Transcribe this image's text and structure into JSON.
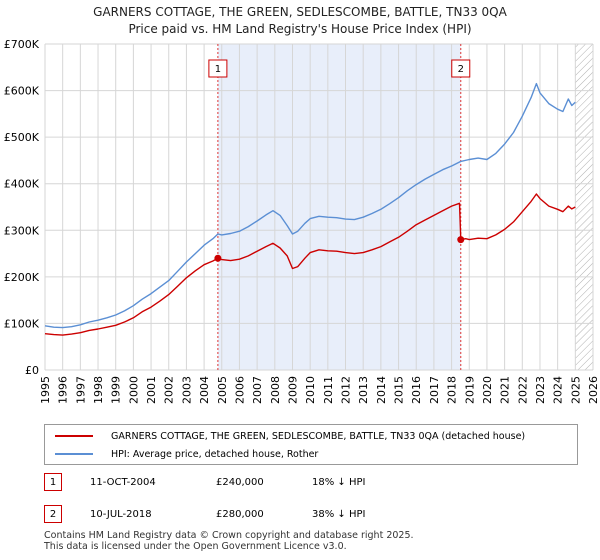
{
  "chart_data": {
    "type": "line",
    "title": "GARNERS COTTAGE, THE GREEN, SEDLESCOMBE, BATTLE, TN33 0QA",
    "subtitle": "Price paid vs. HM Land Registry's House Price Index (HPI)",
    "xlim": [
      1995,
      2026
    ],
    "ylim": [
      0,
      700000
    ],
    "x_ticks": [
      "1995",
      "1996",
      "1997",
      "1998",
      "1999",
      "2000",
      "2001",
      "2002",
      "2003",
      "2004",
      "2005",
      "2006",
      "2007",
      "2008",
      "2009",
      "2010",
      "2011",
      "2012",
      "2013",
      "2014",
      "2015",
      "2016",
      "2017",
      "2018",
      "2019",
      "2020",
      "2021",
      "2022",
      "2023",
      "2024",
      "2025",
      "2026"
    ],
    "y_ticks": [
      {
        "value": 0,
        "label": "£0"
      },
      {
        "value": 100000,
        "label": "£100K"
      },
      {
        "value": 200000,
        "label": "£200K"
      },
      {
        "value": 300000,
        "label": "£300K"
      },
      {
        "value": 400000,
        "label": "£400K"
      },
      {
        "value": 500000,
        "label": "£500K"
      },
      {
        "value": 600000,
        "label": "£600K"
      },
      {
        "value": 700000,
        "label": "£700K"
      }
    ],
    "shaded_region": [
      2004.78,
      2018.52
    ],
    "future_hatch_from": 2025.0,
    "series": [
      {
        "name": "GARNERS COTTAGE, THE GREEN, SEDLESCOMBE, BATTLE, TN33 0QA (detached house)",
        "color": "#cc0000",
        "points": [
          [
            1995.0,
            78000
          ],
          [
            1995.5,
            76000
          ],
          [
            1996.0,
            75000
          ],
          [
            1996.5,
            77000
          ],
          [
            1997.0,
            80000
          ],
          [
            1997.5,
            85000
          ],
          [
            1998.0,
            88000
          ],
          [
            1998.5,
            92000
          ],
          [
            1999.0,
            96000
          ],
          [
            1999.5,
            103000
          ],
          [
            2000.0,
            112000
          ],
          [
            2000.5,
            125000
          ],
          [
            2001.0,
            135000
          ],
          [
            2001.5,
            148000
          ],
          [
            2002.0,
            162000
          ],
          [
            2002.5,
            180000
          ],
          [
            2003.0,
            198000
          ],
          [
            2003.5,
            213000
          ],
          [
            2004.0,
            226000
          ],
          [
            2004.5,
            234000
          ],
          [
            2004.78,
            240000
          ],
          [
            2005.0,
            237000
          ],
          [
            2005.5,
            235000
          ],
          [
            2006.0,
            238000
          ],
          [
            2006.5,
            245000
          ],
          [
            2007.0,
            255000
          ],
          [
            2007.5,
            265000
          ],
          [
            2007.9,
            272000
          ],
          [
            2008.3,
            262000
          ],
          [
            2008.7,
            245000
          ],
          [
            2009.0,
            218000
          ],
          [
            2009.3,
            222000
          ],
          [
            2009.7,
            240000
          ],
          [
            2010.0,
            252000
          ],
          [
            2010.5,
            258000
          ],
          [
            2011.0,
            256000
          ],
          [
            2011.5,
            255000
          ],
          [
            2012.0,
            252000
          ],
          [
            2012.5,
            250000
          ],
          [
            2013.0,
            252000
          ],
          [
            2013.5,
            258000
          ],
          [
            2014.0,
            265000
          ],
          [
            2014.5,
            275000
          ],
          [
            2015.0,
            285000
          ],
          [
            2015.5,
            298000
          ],
          [
            2016.0,
            312000
          ],
          [
            2016.5,
            322000
          ],
          [
            2017.0,
            332000
          ],
          [
            2017.5,
            342000
          ],
          [
            2018.0,
            352000
          ],
          [
            2018.45,
            358000
          ],
          [
            2018.52,
            280000
          ],
          [
            2018.8,
            282000
          ],
          [
            2019.0,
            280000
          ],
          [
            2019.5,
            283000
          ],
          [
            2020.0,
            282000
          ],
          [
            2020.5,
            290000
          ],
          [
            2021.0,
            302000
          ],
          [
            2021.5,
            318000
          ],
          [
            2022.0,
            340000
          ],
          [
            2022.5,
            362000
          ],
          [
            2022.8,
            378000
          ],
          [
            2023.0,
            368000
          ],
          [
            2023.5,
            352000
          ],
          [
            2024.0,
            345000
          ],
          [
            2024.3,
            340000
          ],
          [
            2024.6,
            352000
          ],
          [
            2024.8,
            346000
          ],
          [
            2025.0,
            350000
          ]
        ]
      },
      {
        "name": "HPI: Average price, detached house, Rother",
        "color": "#5b8fd4",
        "points": [
          [
            1995.0,
            95000
          ],
          [
            1995.5,
            92000
          ],
          [
            1996.0,
            91000
          ],
          [
            1996.5,
            93000
          ],
          [
            1997.0,
            97000
          ],
          [
            1997.5,
            103000
          ],
          [
            1998.0,
            107000
          ],
          [
            1998.5,
            112000
          ],
          [
            1999.0,
            118000
          ],
          [
            1999.5,
            127000
          ],
          [
            2000.0,
            138000
          ],
          [
            2000.5,
            152000
          ],
          [
            2001.0,
            164000
          ],
          [
            2001.5,
            178000
          ],
          [
            2002.0,
            192000
          ],
          [
            2002.5,
            212000
          ],
          [
            2003.0,
            232000
          ],
          [
            2003.5,
            250000
          ],
          [
            2004.0,
            268000
          ],
          [
            2004.5,
            282000
          ],
          [
            2004.78,
            292000
          ],
          [
            2005.0,
            290000
          ],
          [
            2005.5,
            293000
          ],
          [
            2006.0,
            298000
          ],
          [
            2006.5,
            308000
          ],
          [
            2007.0,
            320000
          ],
          [
            2007.5,
            333000
          ],
          [
            2007.9,
            342000
          ],
          [
            2008.3,
            332000
          ],
          [
            2008.7,
            310000
          ],
          [
            2009.0,
            292000
          ],
          [
            2009.3,
            298000
          ],
          [
            2009.7,
            315000
          ],
          [
            2010.0,
            325000
          ],
          [
            2010.5,
            330000
          ],
          [
            2011.0,
            328000
          ],
          [
            2011.5,
            327000
          ],
          [
            2012.0,
            324000
          ],
          [
            2012.5,
            323000
          ],
          [
            2013.0,
            328000
          ],
          [
            2013.5,
            336000
          ],
          [
            2014.0,
            345000
          ],
          [
            2014.5,
            357000
          ],
          [
            2015.0,
            370000
          ],
          [
            2015.5,
            385000
          ],
          [
            2016.0,
            398000
          ],
          [
            2016.5,
            410000
          ],
          [
            2017.0,
            420000
          ],
          [
            2017.5,
            430000
          ],
          [
            2018.0,
            438000
          ],
          [
            2018.52,
            448000
          ],
          [
            2019.0,
            452000
          ],
          [
            2019.5,
            455000
          ],
          [
            2020.0,
            452000
          ],
          [
            2020.5,
            465000
          ],
          [
            2021.0,
            485000
          ],
          [
            2021.5,
            510000
          ],
          [
            2022.0,
            545000
          ],
          [
            2022.5,
            585000
          ],
          [
            2022.8,
            615000
          ],
          [
            2023.0,
            595000
          ],
          [
            2023.5,
            572000
          ],
          [
            2024.0,
            560000
          ],
          [
            2024.3,
            555000
          ],
          [
            2024.6,
            582000
          ],
          [
            2024.8,
            568000
          ],
          [
            2025.0,
            575000
          ]
        ]
      }
    ],
    "markers": [
      {
        "label": "1",
        "x": 2004.78,
        "y": 240000
      },
      {
        "label": "2",
        "x": 2018.52,
        "y": 280000
      }
    ]
  },
  "legend": {
    "property_label": "GARNERS COTTAGE, THE GREEN, SEDLESCOMBE, BATTLE, TN33 0QA (detached house)",
    "hpi_label": "HPI: Average price, detached house, Rother",
    "property_color": "#cc0000",
    "hpi_color": "#5b8fd4"
  },
  "transactions": [
    {
      "id": "1",
      "date": "11-OCT-2004",
      "price": "£240,000",
      "hpi": "18% ↓ HPI"
    },
    {
      "id": "2",
      "date": "10-JUL-2018",
      "price": "£280,000",
      "hpi": "38% ↓ HPI"
    }
  ],
  "footer": {
    "line1": "Contains HM Land Registry data © Crown copyright and database right 2025.",
    "line2": "This data is licensed under the Open Government Licence v3.0."
  }
}
